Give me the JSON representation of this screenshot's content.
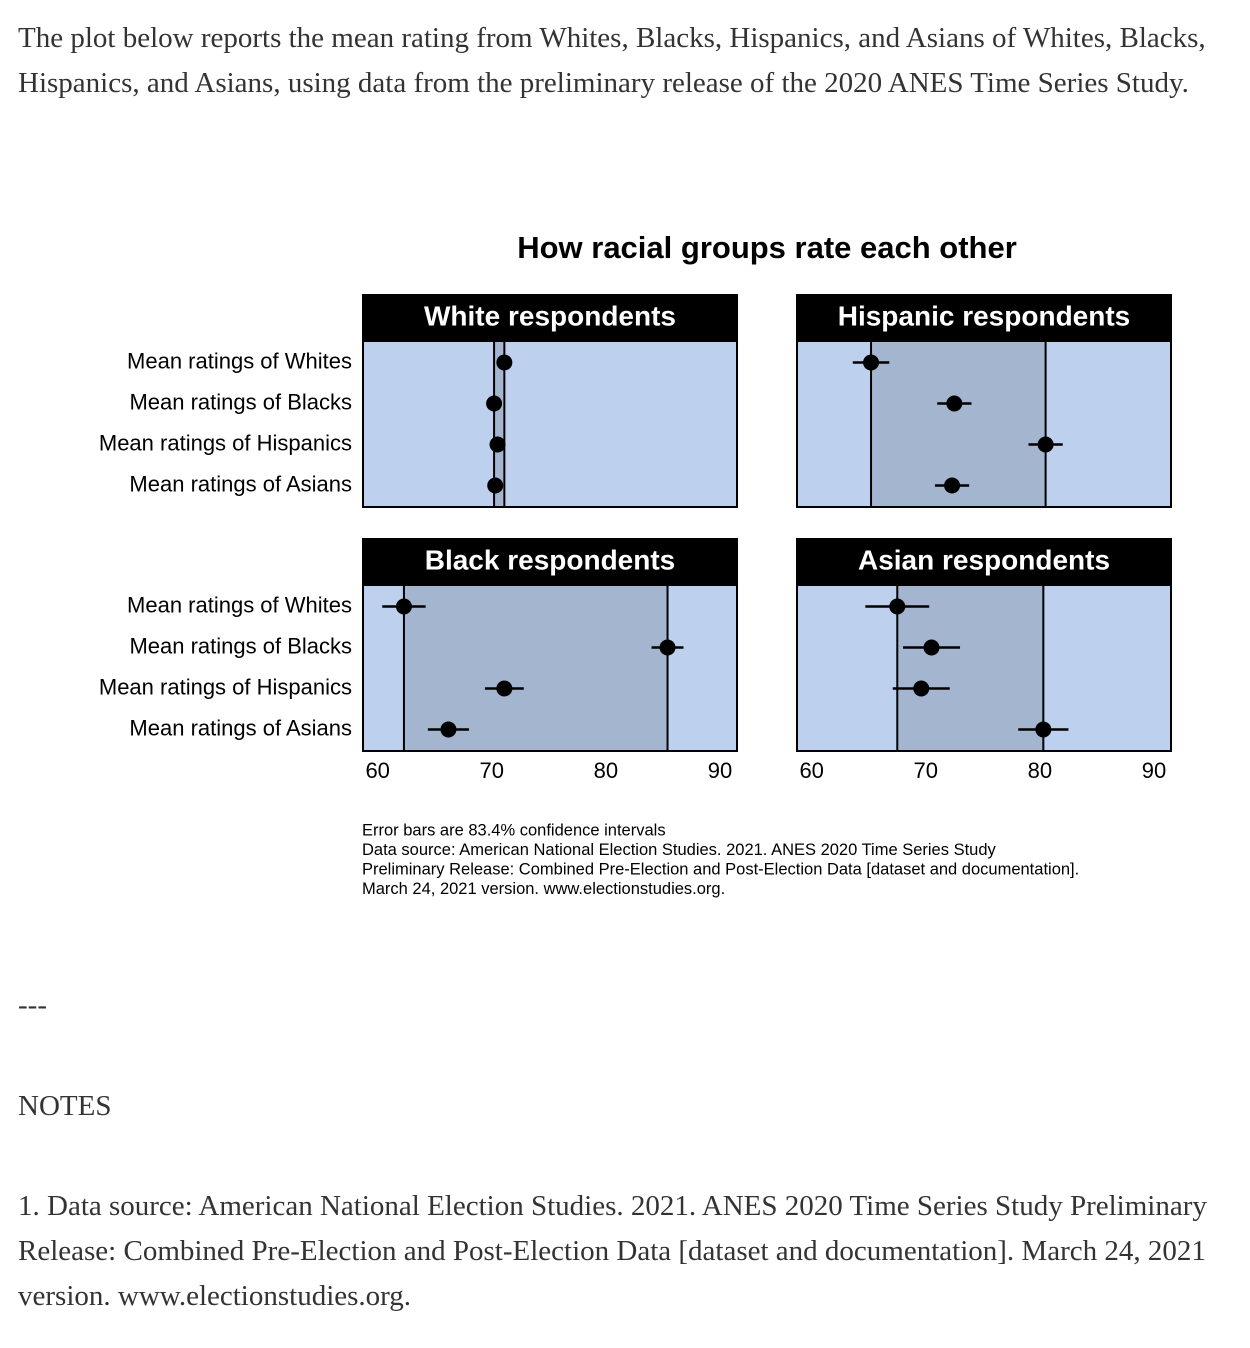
{
  "intro": "The plot below reports the mean rating from Whites, Blacks, Hispanics, and Asians of Whites, Blacks, Hispanics, and Asians, using data from the preliminary release of the 2020 ANES Time Series Study.",
  "figure_title": "How racial groups rate each other",
  "chart_data": [
    {
      "type": "dot",
      "title": "White respondents",
      "categories": [
        "Mean ratings of Whites",
        "Mean ratings of Blacks",
        "Mean ratings of Hispanics",
        "Mean ratings of Asians"
      ],
      "values": [
        71.1,
        70.2,
        70.5,
        70.3
      ],
      "errors": [
        0.3,
        0.3,
        0.3,
        0.3
      ],
      "xlim": [
        58.8,
        91.4
      ]
    },
    {
      "type": "dot",
      "title": "Hispanic respondents",
      "values": [
        65.2,
        72.5,
        80.5,
        72.3
      ],
      "errors": [
        1.6,
        1.5,
        1.5,
        1.5
      ],
      "xlim": [
        58.8,
        91.4
      ]
    },
    {
      "type": "dot",
      "title": "Black respondents",
      "categories": [
        "Mean ratings of Whites",
        "Mean ratings of Blacks",
        "Mean ratings of Hispanics",
        "Mean ratings of Asians"
      ],
      "values": [
        62.3,
        85.4,
        71.1,
        66.2
      ],
      "errors": [
        1.9,
        1.4,
        1.7,
        1.8
      ],
      "xlim": [
        58.8,
        91.4
      ],
      "xticks": [
        60,
        70,
        80,
        90
      ]
    },
    {
      "type": "dot",
      "title": "Asian respondents",
      "values": [
        67.5,
        70.5,
        69.6,
        80.3
      ],
      "errors": [
        2.8,
        2.5,
        2.5,
        2.2
      ],
      "xlim": [
        58.8,
        91.4
      ],
      "xticks": [
        60,
        70,
        80,
        90
      ]
    }
  ],
  "caption": [
    "Error bars are 83.4% confidence intervals",
    "Data source: American National Election Studies. 2021. ANES 2020 Time Series Study",
    "Preliminary Release: Combined Pre-Election and Post-Election Data [dataset and documentation].",
    "March 24, 2021 version. www.electionstudies.org."
  ],
  "separator": "---",
  "notes_heading": "NOTES",
  "note": "1. Data source: American National Election Studies. 2021. ANES 2020 Time Series Study Preliminary Release: Combined Pre-Election and Post-Election Data [dataset and documentation]. March 24, 2021 version. www.electionstudies.org."
}
